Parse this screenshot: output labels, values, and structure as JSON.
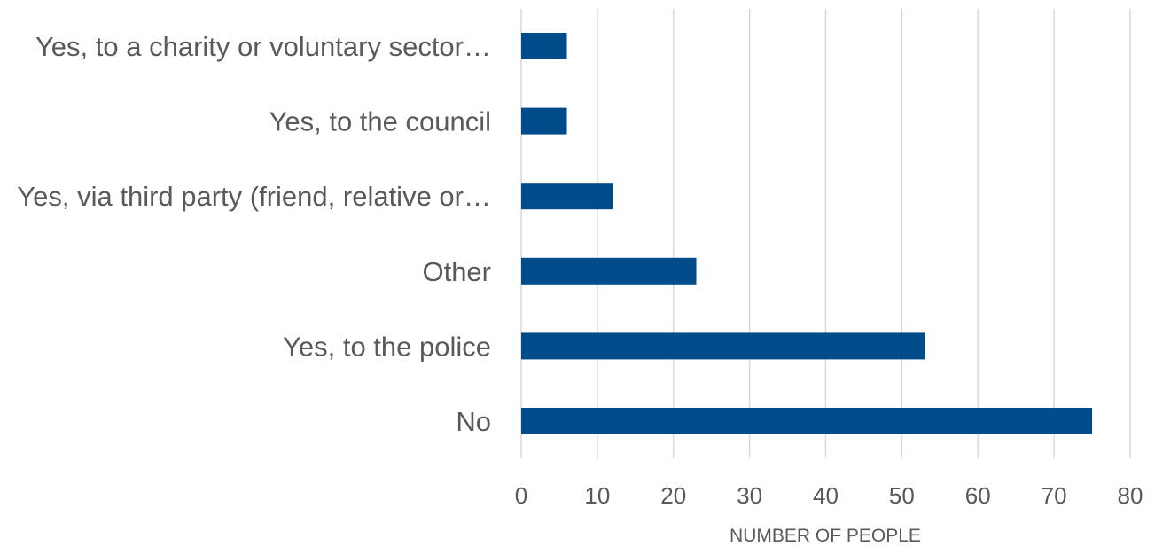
{
  "chart_data": {
    "type": "bar",
    "orientation": "horizontal",
    "categories": [
      "Yes, to a charity or voluntary sector…",
      "Yes, to the council",
      "Yes, via third party (friend, relative or…",
      "Other",
      "Yes, to the police",
      "No"
    ],
    "values": [
      6,
      6,
      12,
      23,
      53,
      75
    ],
    "title": "",
    "xlabel": "NUMBER OF PEOPLE",
    "ylabel": "",
    "xlim": [
      0,
      80
    ],
    "xticks": [
      "0",
      "10",
      "20",
      "30",
      "40",
      "50",
      "60",
      "70",
      "80"
    ],
    "grid": "vertical",
    "legend": "none",
    "bar_color": "#004C8B",
    "grid_color": "#D9D9D9",
    "text_color": "#595959"
  }
}
